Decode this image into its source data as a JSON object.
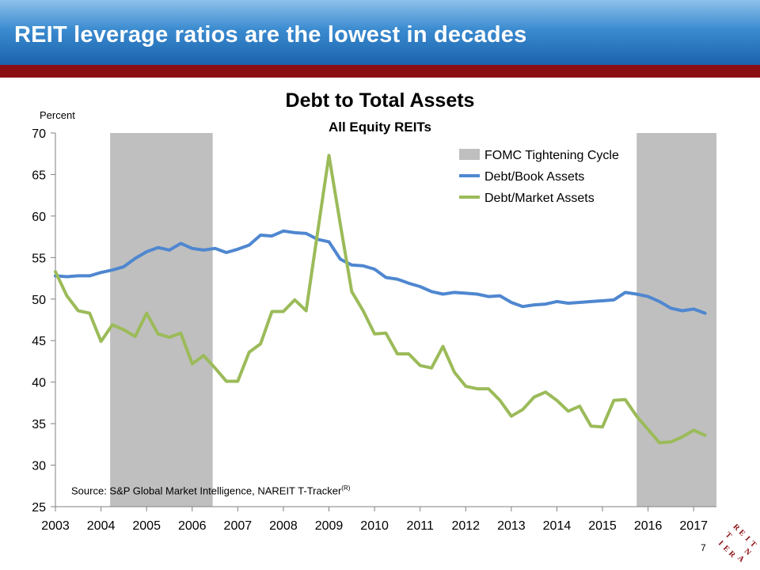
{
  "header": {
    "title": "REIT leverage ratios are the lowest in decades"
  },
  "footer": {
    "source": "Source: S&P Global Market Intelligence, NAREIT T-Tracker",
    "source_mark": "(R)",
    "page_number": "7",
    "logo_letters": [
      "R",
      "E",
      "I",
      "T",
      "N",
      "A",
      "R",
      "E",
      "I",
      "T"
    ]
  },
  "chart_data": {
    "type": "line",
    "title": "Debt to Total Assets",
    "subtitle": "All Equity REITs",
    "ylabel": "Percent",
    "ylim": [
      25,
      70
    ],
    "yticks": [
      25,
      30,
      35,
      40,
      45,
      50,
      55,
      60,
      65,
      70
    ],
    "xlim": [
      2003,
      2017.5
    ],
    "xticks": [
      2003,
      2004,
      2005,
      2006,
      2007,
      2008,
      2009,
      2010,
      2011,
      2012,
      2013,
      2014,
      2015,
      2016,
      2017
    ],
    "grid": false,
    "legend_position": "top-right",
    "shaded_regions": {
      "name": "FOMC Tightening Cycle",
      "color": "#bfbfbf",
      "ranges": [
        [
          2004.2,
          2006.45
        ],
        [
          2015.75,
          2017.5
        ]
      ]
    },
    "series": [
      {
        "name": "Debt/Book Assets",
        "color": "#4f87d0",
        "x": [
          2003.0,
          2003.25,
          2003.5,
          2003.75,
          2004.0,
          2004.25,
          2004.5,
          2004.75,
          2005.0,
          2005.25,
          2005.5,
          2005.75,
          2006.0,
          2006.25,
          2006.5,
          2006.75,
          2007.0,
          2007.25,
          2007.5,
          2007.75,
          2008.0,
          2008.25,
          2008.5,
          2008.75,
          2009.0,
          2009.25,
          2009.5,
          2009.75,
          2010.0,
          2010.25,
          2010.5,
          2010.75,
          2011.0,
          2011.25,
          2011.5,
          2011.75,
          2012.0,
          2012.25,
          2012.5,
          2012.75,
          2013.0,
          2013.25,
          2013.5,
          2013.75,
          2014.0,
          2014.25,
          2014.5,
          2014.75,
          2015.0,
          2015.25,
          2015.5,
          2015.75,
          2016.0,
          2016.25,
          2016.5,
          2016.75,
          2017.0,
          2017.25
        ],
        "values": [
          52.8,
          52.7,
          52.8,
          52.8,
          53.2,
          53.5,
          53.9,
          54.9,
          55.7,
          56.2,
          55.9,
          56.7,
          56.1,
          55.9,
          56.1,
          55.6,
          56.0,
          56.5,
          57.7,
          57.6,
          58.2,
          58.0,
          57.9,
          57.2,
          56.9,
          54.8,
          54.1,
          54.0,
          53.6,
          52.6,
          52.4,
          51.9,
          51.5,
          50.9,
          50.6,
          50.8,
          50.7,
          50.6,
          50.3,
          50.4,
          49.6,
          49.1,
          49.3,
          49.4,
          49.7,
          49.5,
          49.6,
          49.7,
          49.8,
          49.9,
          50.8,
          50.6,
          50.3,
          49.7,
          48.9,
          48.6,
          48.8,
          48.3
        ]
      },
      {
        "name": "Debt/Market Assets",
        "color": "#9bbb59",
        "x": [
          2003.0,
          2003.25,
          2003.5,
          2003.75,
          2004.0,
          2004.25,
          2004.5,
          2004.75,
          2005.0,
          2005.25,
          2005.5,
          2005.75,
          2006.0,
          2006.25,
          2006.5,
          2006.75,
          2007.0,
          2007.25,
          2007.5,
          2007.75,
          2008.0,
          2008.25,
          2008.5,
          2008.75,
          2009.0,
          2009.25,
          2009.5,
          2009.75,
          2010.0,
          2010.25,
          2010.5,
          2010.75,
          2011.0,
          2011.25,
          2011.5,
          2011.75,
          2012.0,
          2012.25,
          2012.5,
          2012.75,
          2013.0,
          2013.25,
          2013.5,
          2013.75,
          2014.0,
          2014.25,
          2014.5,
          2014.75,
          2015.0,
          2015.25,
          2015.5,
          2015.75,
          2016.0,
          2016.25,
          2016.5,
          2016.75,
          2017.0,
          2017.25
        ],
        "values": [
          53.3,
          50.4,
          48.6,
          48.3,
          44.9,
          46.9,
          46.3,
          45.5,
          48.3,
          45.8,
          45.4,
          45.9,
          42.2,
          43.2,
          41.7,
          40.1,
          40.1,
          43.6,
          44.6,
          48.5,
          48.5,
          49.9,
          48.6,
          58.0,
          67.3,
          59.0,
          50.9,
          48.6,
          45.8,
          45.9,
          43.4,
          43.4,
          42.0,
          41.7,
          44.3,
          41.2,
          39.5,
          39.2,
          39.2,
          37.8,
          35.9,
          36.7,
          38.2,
          38.8,
          37.8,
          36.5,
          37.1,
          34.7,
          34.6,
          37.8,
          37.9,
          35.9,
          34.3,
          32.7,
          32.8,
          33.4,
          34.2,
          33.6
        ]
      }
    ]
  }
}
